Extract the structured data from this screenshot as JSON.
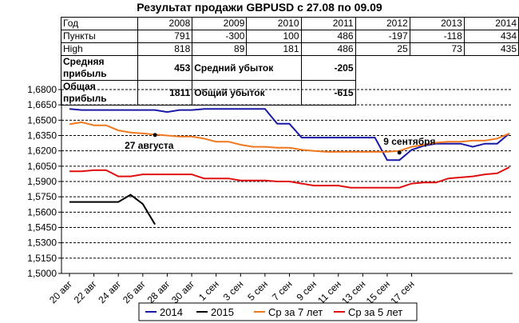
{
  "title": "Результат продажи GBPUSD с 27.08 по 09.09",
  "table": {
    "header": [
      "Год",
      "2008",
      "2009",
      "2010",
      "2011",
      "2012",
      "2013",
      "2014"
    ],
    "rows": [
      [
        "Пункты",
        "791",
        "-300",
        "100",
        "486",
        "-197",
        "-118",
        "434"
      ],
      [
        "High",
        "818",
        "89",
        "181",
        "486",
        "25",
        "73",
        "435"
      ]
    ],
    "summary": [
      {
        "label": "Средняя прибыль",
        "value": "453",
        "label2": "Средний убыток",
        "value2": "-205"
      },
      {
        "label": "Общая прибыль",
        "value": "1811",
        "label2": "Общий убыток",
        "value2": "-615"
      }
    ]
  },
  "chart_data": {
    "type": "line",
    "ylim": [
      1.5,
      1.68
    ],
    "yticks": [
      "1,5000",
      "1,5150",
      "1,5300",
      "1,5450",
      "1,5600",
      "1,5750",
      "1,5900",
      "1,6050",
      "1,6200",
      "1,6350",
      "1,6500",
      "1,6650",
      "1,6800"
    ],
    "xticks": [
      "20 авг",
      "22 авг",
      "24 авг",
      "26 авг",
      "28 авг",
      "30 авг",
      "1 сен",
      "3 сен",
      "5 сен",
      "7 сен",
      "9 сен",
      "11 сен",
      "13 сен",
      "15 сен",
      "17 сен"
    ],
    "grid": "horizontal dashed",
    "legend_position": "bottom",
    "series": [
      {
        "name": "2014",
        "color": "#1a1aa6",
        "values": [
          1.661,
          1.66,
          1.66,
          1.66,
          1.66,
          1.66,
          1.66,
          1.66,
          1.658,
          1.66,
          1.66,
          1.661,
          1.661,
          1.661,
          1.661,
          1.661,
          1.661,
          1.6465,
          1.6465,
          1.633,
          1.633,
          1.633,
          1.633,
          1.633,
          1.633,
          1.633,
          1.611,
          1.611,
          1.621,
          1.625,
          1.627,
          1.627,
          1.627,
          1.624,
          1.627,
          1.627,
          1.637
        ]
      },
      {
        "name": "2015",
        "color": "#000000",
        "values": [
          1.57,
          1.57,
          1.57,
          1.57,
          1.57,
          1.577,
          1.568,
          1.548
        ]
      },
      {
        "name": "Ср за 7 лет",
        "color": "#f07820",
        "values": [
          1.646,
          1.648,
          1.645,
          1.645,
          1.64,
          1.638,
          1.637,
          1.636,
          1.635,
          1.634,
          1.634,
          1.632,
          1.629,
          1.629,
          1.626,
          1.624,
          1.624,
          1.623,
          1.623,
          1.621,
          1.62,
          1.619,
          1.619,
          1.619,
          1.619,
          1.619,
          1.619,
          1.62,
          1.624,
          1.626,
          1.628,
          1.629,
          1.629,
          1.63,
          1.63,
          1.632,
          1.637
        ]
      },
      {
        "name": "Ср за 5 лет",
        "color": "#e01010",
        "values": [
          1.6,
          1.6,
          1.601,
          1.601,
          1.595,
          1.595,
          1.597,
          1.597,
          1.597,
          1.597,
          1.597,
          1.593,
          1.593,
          1.593,
          1.591,
          1.591,
          1.591,
          1.59,
          1.59,
          1.588,
          1.586,
          1.586,
          1.586,
          1.584,
          1.584,
          1.584,
          1.584,
          1.584,
          1.588,
          1.589,
          1.589,
          1.593,
          1.594,
          1.595,
          1.597,
          1.598,
          1.604
        ]
      }
    ],
    "annotations": [
      {
        "text": "27 августа",
        "x": 7,
        "y": 1.6355
      },
      {
        "text": "9 сентября",
        "x": 27,
        "y": 1.6183
      }
    ]
  }
}
